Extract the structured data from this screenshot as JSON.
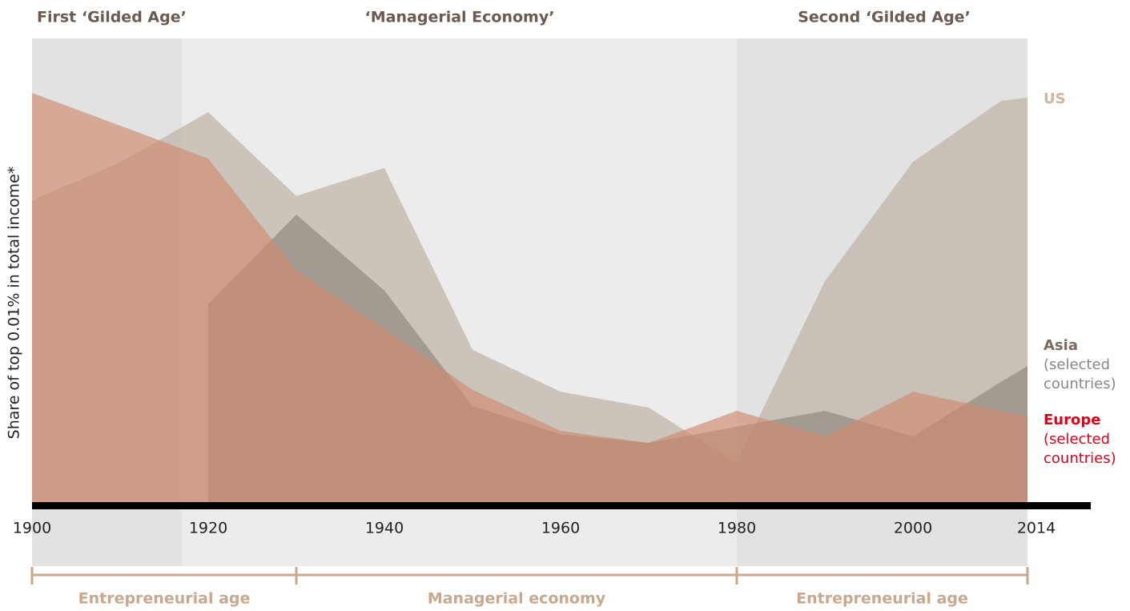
{
  "chart_data": {
    "type": "area",
    "ylabel": "Share of top 0.01% in total income*",
    "x": [
      1900,
      1910,
      1920,
      1930,
      1940,
      1950,
      1960,
      1970,
      1980,
      1990,
      2000,
      2010,
      2013
    ],
    "xlim": [
      1900,
      2020
    ],
    "xticks": [
      1900,
      1920,
      1940,
      1960,
      1980,
      2000,
      2014
    ],
    "ylim": [
      0,
      100
    ],
    "series": [
      {
        "name": "US",
        "color": "#bcaea1",
        "values": [
          65.3,
          73.4,
          84.2,
          66.2,
          72.2,
          33.2,
          24.2,
          20.8,
          8.9,
          47.9,
          73.5,
          86.6,
          87.3
        ]
      },
      {
        "name": "Asia",
        "note": "(selected countries)",
        "color": "#8e847d",
        "values": [
          null,
          null,
          43.0,
          62.2,
          45.9,
          21.1,
          15.1,
          13.2,
          16.7,
          20.1,
          14.6,
          26.3,
          29.7
        ]
      },
      {
        "name": "Europe",
        "note": "(selected countries)",
        "color": "#d08a6e",
        "values": [
          88.3,
          81.3,
          74.2,
          50.3,
          37.8,
          24.6,
          15.8,
          13.2,
          20.1,
          14.6,
          24.2,
          20.1,
          18.9
        ]
      }
    ],
    "periods": [
      {
        "label": "First ‘Gilded Age’",
        "start": 1900,
        "end": 1917,
        "color": "#e2e2e2"
      },
      {
        "label": "‘Managerial Economy’",
        "start": 1917,
        "end": 1980,
        "color": "#ececec"
      },
      {
        "label": "Second ‘Gilded Age’",
        "start": 1980,
        "end": 2013,
        "color": "#e2e2e2"
      }
    ],
    "eras": [
      {
        "label": "Entrepreneurial age",
        "start": 1900,
        "end": 1930
      },
      {
        "label": "Managerial economy",
        "start": 1930,
        "end": 1980
      },
      {
        "label": "Entrepreneurial age",
        "start": 1980,
        "end": 2013
      }
    ]
  }
}
